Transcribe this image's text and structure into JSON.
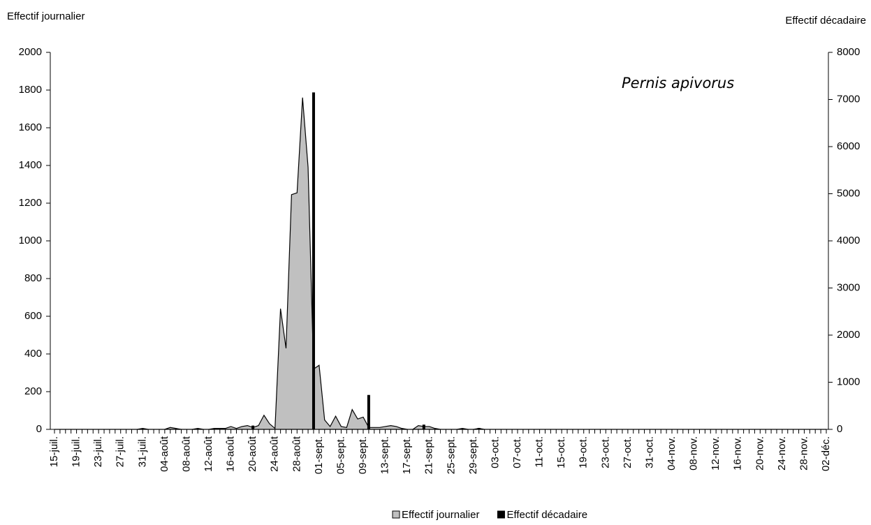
{
  "chart_data": {
    "type": "area",
    "annotation": "Pernis apivorus",
    "ylabel": "Effectif journalier",
    "y2label": "Effectif décadaire",
    "ylim": [
      0,
      2000
    ],
    "yticks": [
      0,
      200,
      400,
      600,
      800,
      1000,
      1200,
      1400,
      1600,
      1800,
      2000
    ],
    "y2lim": [
      0,
      8000
    ],
    "y2ticks": [
      0,
      1000,
      2000,
      3000,
      4000,
      5000,
      6000,
      7000,
      8000
    ],
    "legend": "bottom",
    "categories": [
      "15-juil.",
      null,
      null,
      null,
      "19-juil.",
      null,
      null,
      null,
      "23-juil.",
      null,
      null,
      null,
      "27-juil.",
      null,
      null,
      null,
      "31-juil.",
      null,
      null,
      null,
      "04-août",
      null,
      null,
      null,
      "08-août",
      null,
      null,
      null,
      "12-août",
      null,
      null,
      null,
      "16-août",
      null,
      null,
      null,
      "20-août",
      null,
      null,
      null,
      "24-août",
      null,
      null,
      null,
      "28-août",
      null,
      null,
      null,
      "01-sept.",
      null,
      null,
      null,
      "05-sept.",
      null,
      null,
      null,
      "09-sept.",
      null,
      null,
      null,
      "13-sept.",
      null,
      null,
      null,
      "17-sept.",
      null,
      null,
      null,
      "21-sept.",
      null,
      null,
      null,
      "25-sept.",
      null,
      null,
      null,
      "29-sept.",
      null,
      null,
      null,
      "03-oct.",
      null,
      null,
      null,
      "07-oct.",
      null,
      null,
      null,
      "11-oct.",
      null,
      null,
      null,
      "15-oct.",
      null,
      null,
      null,
      "19-oct.",
      null,
      null,
      null,
      "23-oct.",
      null,
      null,
      null,
      "27-oct.",
      null,
      null,
      null,
      "31-oct.",
      null,
      null,
      null,
      "04-nov.",
      null,
      null,
      null,
      "08-nov.",
      null,
      null,
      null,
      "12-nov.",
      null,
      null,
      null,
      "16-nov.",
      null,
      null,
      null,
      "20-nov.",
      null,
      null,
      null,
      "24-nov.",
      null,
      null,
      null,
      "28-nov.",
      null,
      null,
      null,
      "02-déc."
    ],
    "series": [
      {
        "name": "Effectif journalier",
        "type": "area",
        "color": "#c0c0c0",
        "values": [
          0,
          0,
          0,
          0,
          0,
          0,
          0,
          0,
          0,
          0,
          0,
          0,
          0,
          0,
          0,
          0,
          5,
          0,
          0,
          0,
          0,
          10,
          5,
          0,
          0,
          0,
          5,
          0,
          0,
          5,
          5,
          5,
          15,
          5,
          15,
          20,
          10,
          20,
          75,
          30,
          5,
          640,
          430,
          1245,
          1255,
          1760,
          1390,
          320,
          340,
          50,
          15,
          70,
          15,
          10,
          105,
          55,
          65,
          10,
          10,
          10,
          15,
          20,
          15,
          5,
          0,
          0,
          20,
          15,
          15,
          5,
          0,
          0,
          0,
          0,
          5,
          0,
          0,
          5,
          0,
          0,
          0,
          0,
          0,
          0,
          0,
          0,
          0,
          0,
          0,
          0,
          0,
          0,
          0,
          0,
          0,
          0,
          0,
          0,
          0,
          0,
          0,
          0,
          0,
          0,
          0,
          0,
          0,
          0,
          0,
          0,
          0,
          0,
          0,
          0,
          0,
          0,
          0,
          0,
          0,
          0,
          0,
          0,
          0,
          0,
          0,
          0,
          0,
          0,
          0,
          0,
          0,
          0,
          0,
          0,
          0,
          0,
          0,
          0,
          0,
          0,
          0
        ]
      },
      {
        "name": "Effectif décadaire",
        "type": "bar",
        "axis": "y2",
        "color": "#000000",
        "values": [
          null,
          null,
          null,
          null,
          null,
          null,
          null,
          null,
          null,
          null,
          null,
          null,
          null,
          null,
          null,
          null,
          20,
          null,
          null,
          null,
          null,
          null,
          null,
          null,
          null,
          null,
          10,
          null,
          null,
          null,
          null,
          null,
          null,
          null,
          null,
          null,
          80,
          null,
          null,
          null,
          null,
          null,
          null,
          null,
          null,
          null,
          null,
          7150,
          null,
          null,
          null,
          null,
          null,
          null,
          null,
          null,
          null,
          730,
          null,
          null,
          null,
          null,
          null,
          null,
          null,
          null,
          null,
          100,
          null,
          null,
          null,
          null,
          null,
          null,
          null,
          null,
          null,
          30,
          null,
          null,
          null,
          null,
          null,
          null,
          null,
          null,
          null,
          0,
          null,
          null,
          null,
          null,
          null,
          null,
          null,
          null,
          null,
          0,
          null,
          null,
          null,
          null,
          null,
          null,
          null,
          null,
          null,
          null,
          0,
          null,
          null,
          null,
          null,
          null,
          null,
          null,
          null,
          null,
          0,
          null,
          null,
          null,
          null,
          null,
          null,
          null,
          null,
          null,
          0,
          null,
          null,
          null,
          null,
          null,
          null,
          null,
          null,
          null,
          0,
          null,
          null
        ]
      }
    ]
  }
}
